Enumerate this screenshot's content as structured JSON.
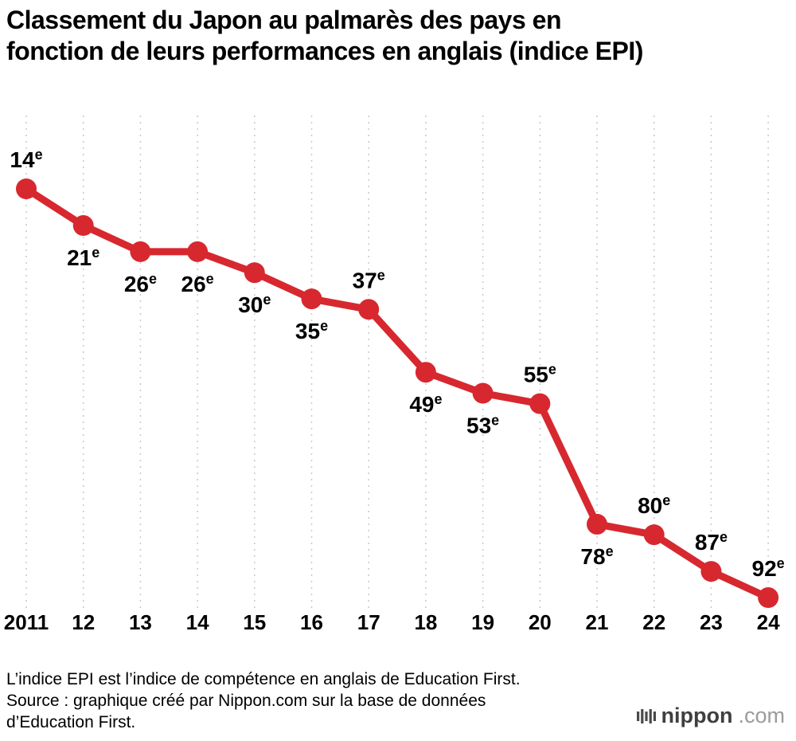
{
  "title": {
    "line1": "Classement du Japon au palmarès des pays en",
    "line2": "fonction de leurs performances en anglais (indice EPI)"
  },
  "chart_data": {
    "type": "line",
    "title": "Classement du Japon au palmarès des pays en fonction de leurs performances en anglais (indice EPI)",
    "x_labels": [
      "2011",
      "12",
      "13",
      "14",
      "15",
      "16",
      "17",
      "18",
      "19",
      "20",
      "21",
      "22",
      "23",
      "24"
    ],
    "ranks": [
      14,
      21,
      26,
      26,
      30,
      35,
      37,
      49,
      53,
      55,
      78,
      80,
      87,
      92
    ],
    "rank_suffix": "e",
    "label_positions": [
      "above",
      "below",
      "below",
      "below",
      "below",
      "below",
      "above",
      "below",
      "below",
      "above",
      "below",
      "above",
      "above",
      "above"
    ],
    "line_color": "#d7282f",
    "grid_color": "#c9c9c9",
    "label_color": "#000000",
    "grid": "vertical-dashed",
    "legend": "none",
    "y_axis": {
      "inverted": true,
      "min_rank": 14,
      "max_rank": 92
    }
  },
  "footer": {
    "line1": "L’indice EPI est l’indice de compétence en anglais de Education First.",
    "line2": "Source : graphique créé par Nippon.com sur la base de données",
    "line3": "d’Education First."
  },
  "logo": {
    "name": "nippon",
    "tld": ".com"
  }
}
